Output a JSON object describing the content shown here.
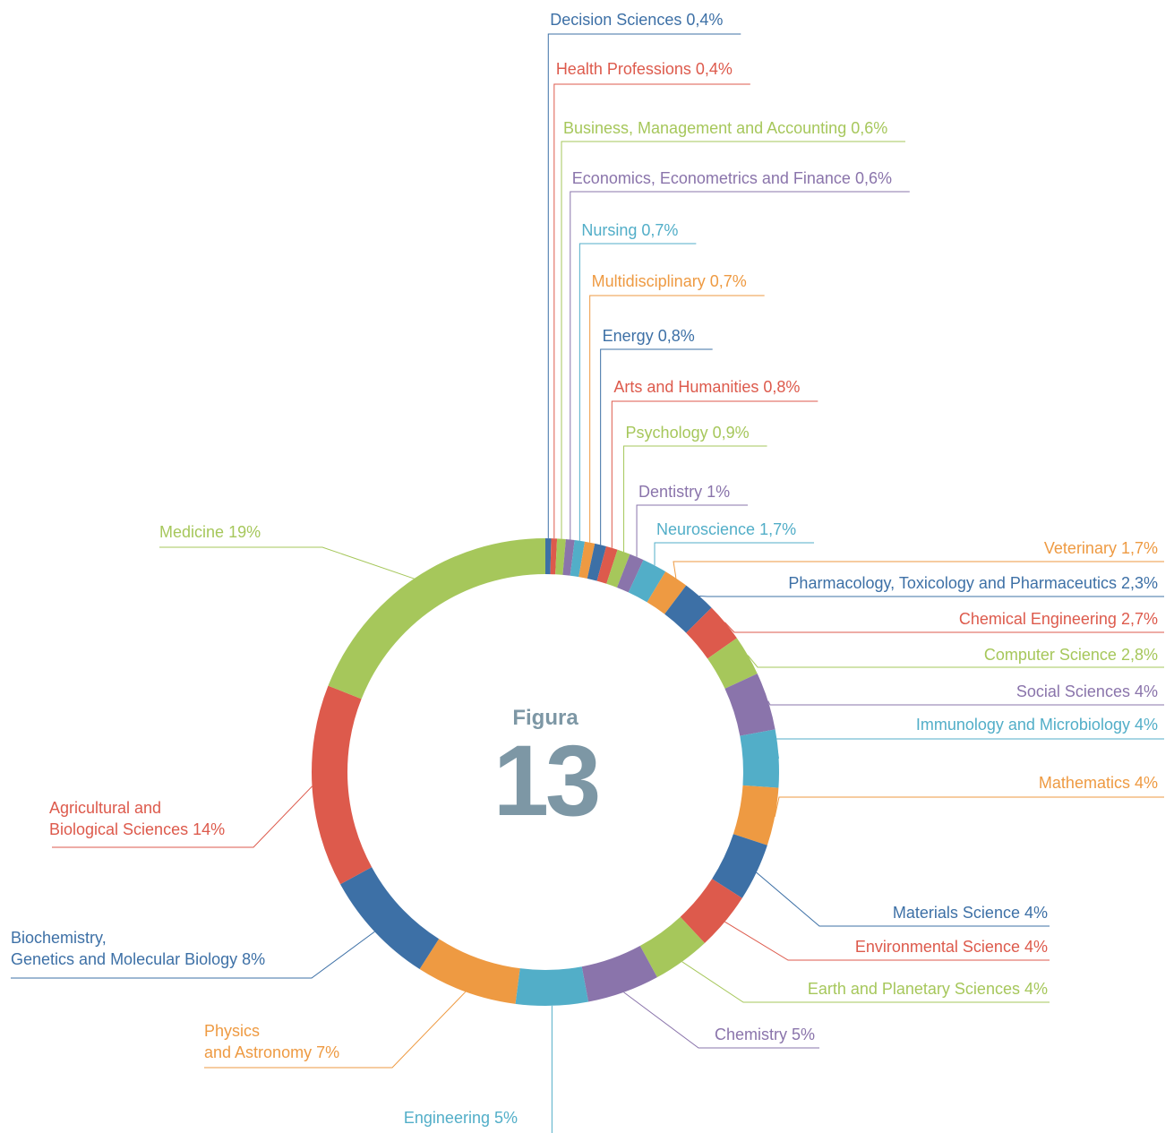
{
  "chart_data": {
    "type": "donut",
    "annotations": [
      "Figura",
      "13"
    ],
    "categories": [
      "Decision Sciences",
      "Health Professions",
      "Business, Management and Accounting",
      "Economics, Econometrics and Finance",
      "Nursing",
      "Multidisciplinary",
      "Energy",
      "Arts and Humanities",
      "Psychology",
      "Dentistry",
      "Neuroscience",
      "Veterinary",
      "Pharmacology, Toxicology and Pharmaceutics",
      "Chemical Engineering",
      "Computer Science",
      "Social Sciences",
      "Immunology and Microbiology",
      "Mathematics",
      "Materials Science",
      "Environmental Science",
      "Earth and Planetary Sciences",
      "Chemistry",
      "Engineering",
      "Physics\nand Astronomy",
      "Biochemistry,\nGenetics and Molecular Biology",
      "Agricultural and\nBiological Sciences",
      "Medicine"
    ],
    "values": [
      0.4,
      0.4,
      0.6,
      0.6,
      0.7,
      0.7,
      0.8,
      0.8,
      0.9,
      1,
      1.7,
      1.7,
      2.3,
      2.7,
      2.8,
      4,
      4,
      4,
      4,
      4,
      4,
      5,
      5,
      7,
      8,
      14,
      19
    ],
    "value_labels": [
      "0,4%",
      "0,4%",
      "0,6%",
      "0,6%",
      "0,7%",
      "0,7%",
      "0,8%",
      "0,8%",
      "0,9%",
      "1%",
      "1,7%",
      "1,7%",
      "2,3%",
      "2,7%",
      "2,8%",
      "4%",
      "4%",
      "4%",
      "4%",
      "4%",
      "4%",
      "5%",
      "5%",
      "7%",
      "8%",
      "14%",
      "19%"
    ],
    "colors": [
      "#3d70a6",
      "#dd5a4c",
      "#a6c75b",
      "#8a74ab",
      "#52aec8",
      "#ee9a42",
      "#3d70a6",
      "#dd5a4c",
      "#a6c75b",
      "#8a74ab",
      "#52aec8",
      "#ee9a42",
      "#3d70a6",
      "#dd5a4c",
      "#a6c75b",
      "#8a74ab",
      "#52aec8",
      "#ee9a42",
      "#3d70a6",
      "#dd5a4c",
      "#a6c75b",
      "#8a74ab",
      "#52aec8",
      "#ee9a42",
      "#3d70a6",
      "#dd5a4c",
      "#a6c75b"
    ]
  }
}
